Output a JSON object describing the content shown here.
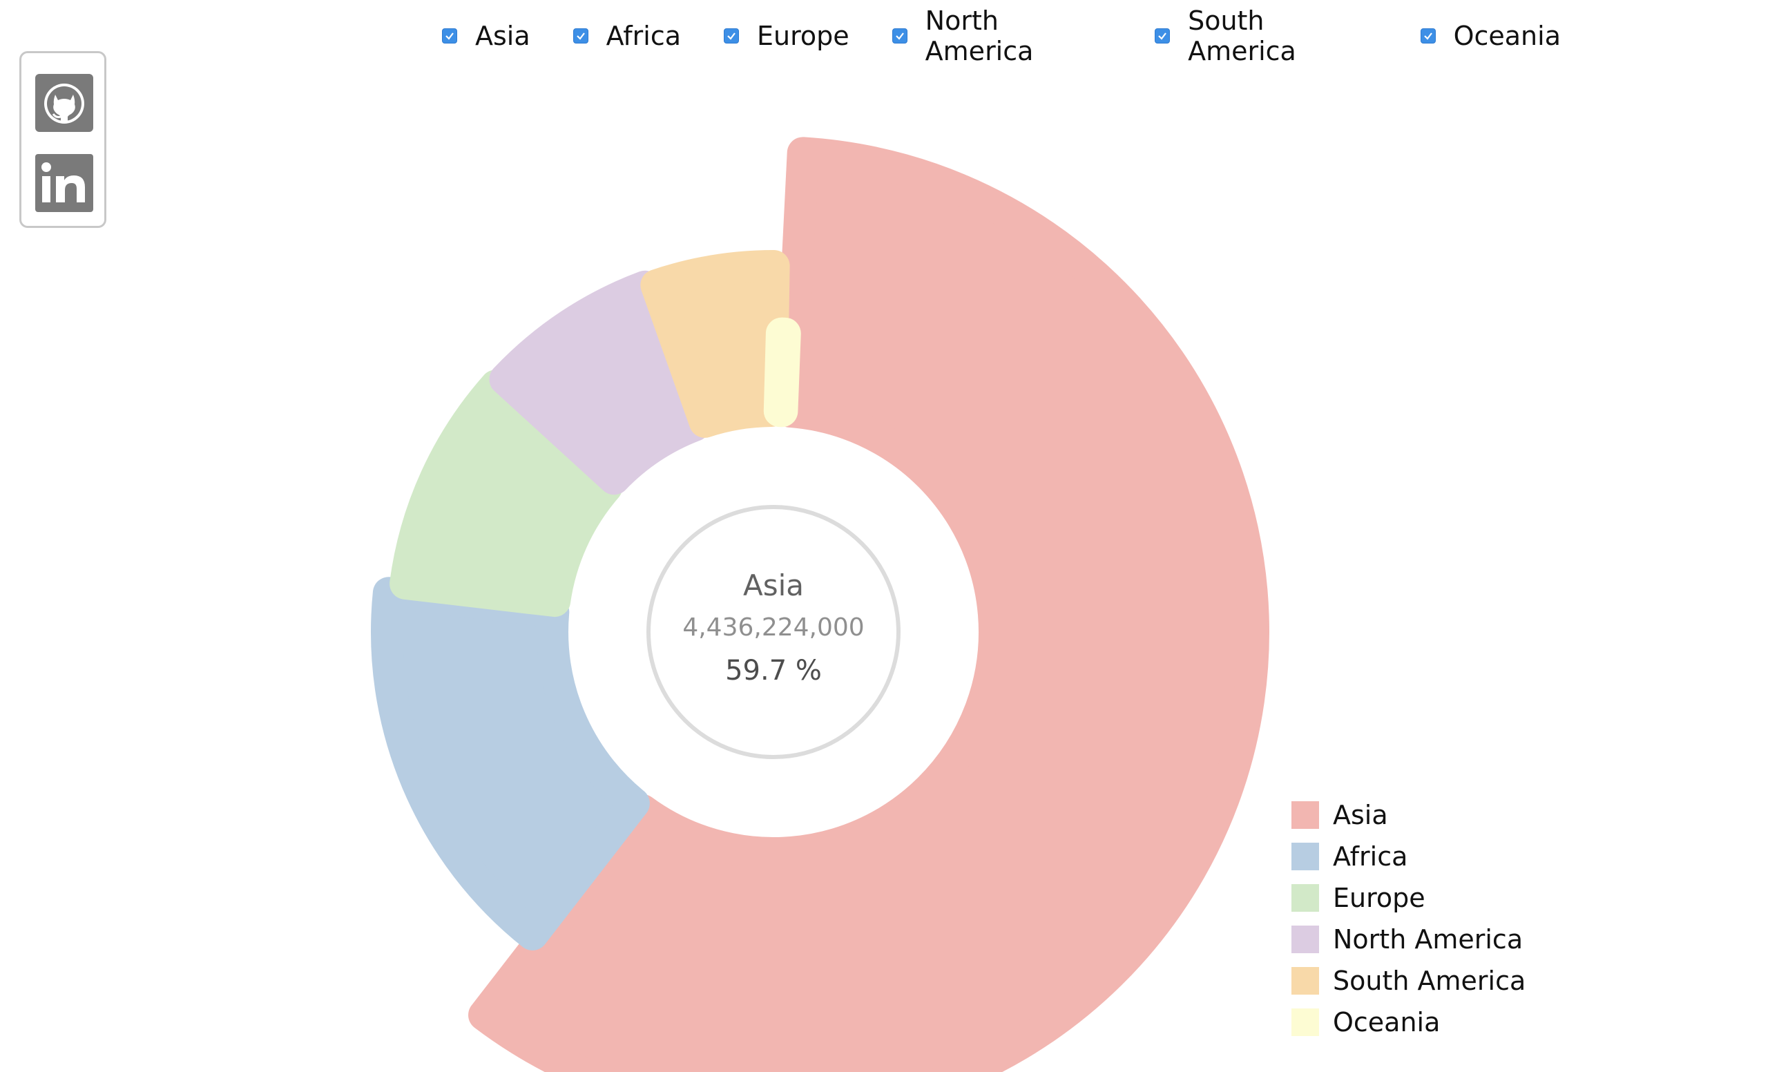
{
  "social": {
    "links": [
      {
        "id": "github",
        "icon": "github-icon"
      },
      {
        "id": "linkedin",
        "icon": "linkedin-icon"
      }
    ]
  },
  "filters": [
    {
      "label": "Asia",
      "checked": true
    },
    {
      "label": "Africa",
      "checked": true
    },
    {
      "label": "Europe",
      "checked": true
    },
    {
      "label": "North America",
      "checked": true
    },
    {
      "label": "South America",
      "checked": true
    },
    {
      "label": "Oceania",
      "checked": true
    }
  ],
  "center": {
    "name": "Asia",
    "value": "4,436,224,000",
    "percent": "59.7 %"
  },
  "chart_data": {
    "type": "pie",
    "variant": "donut",
    "categories": [
      "Asia",
      "Africa",
      "Europe",
      "North America",
      "South America",
      "Oceania"
    ],
    "values": [
      4436224000,
      1216130000,
      738849000,
      579024000,
      422535000,
      39901000
    ],
    "colors": [
      "#f2b6b1",
      "#b7cde2",
      "#d2e9c8",
      "#dccce2",
      "#f8d9a9",
      "#fdfcd3"
    ],
    "radius_scale": [
      1.0,
      0.64,
      0.58,
      0.57,
      0.56,
      0.3
    ],
    "highlighted": "Asia",
    "legend_position": "bottom-right"
  }
}
